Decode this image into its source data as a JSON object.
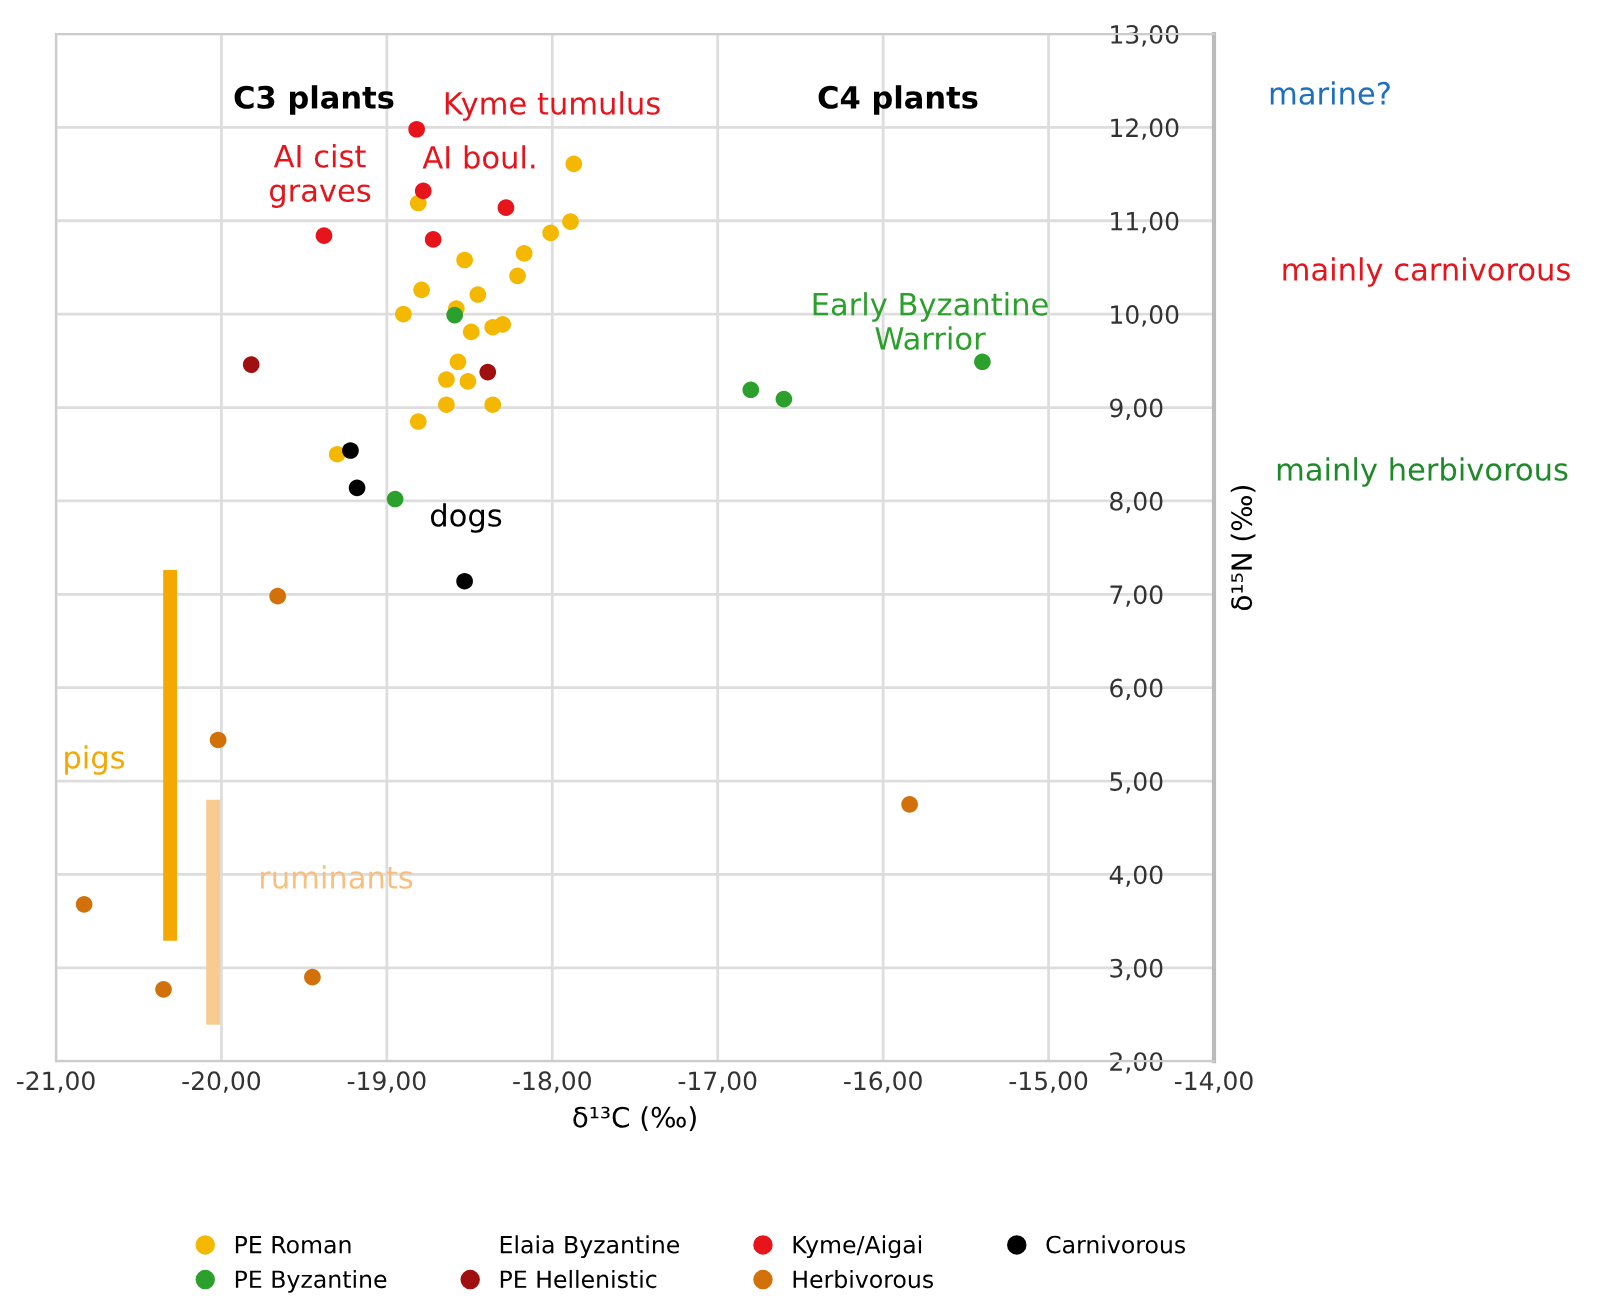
{
  "chart_data": {
    "type": "scatter",
    "xlabel": "δ¹³C (‰)",
    "ylabel": "δ¹⁵N (‰)",
    "xlim": [
      -21,
      -14
    ],
    "xticks": [
      {
        "value": -21,
        "label": "-21,00"
      },
      {
        "value": -20,
        "label": "-20,00"
      },
      {
        "value": -19,
        "label": "-19,00"
      },
      {
        "value": -18,
        "label": "-18,00"
      },
      {
        "value": -17,
        "label": "-17,00"
      },
      {
        "value": -16,
        "label": "-16,00"
      },
      {
        "value": -15,
        "label": "-15,00"
      },
      {
        "value": -14,
        "label": "-14,00"
      }
    ],
    "ylim": [
      2,
      13
    ],
    "yticks": [
      {
        "value": 2,
        "label": "2,00"
      },
      {
        "value": 3,
        "label": "3,00"
      },
      {
        "value": 4,
        "label": "4,00"
      },
      {
        "value": 5,
        "label": "5,00"
      },
      {
        "value": 6,
        "label": "6,00"
      },
      {
        "value": 7,
        "label": "7,00"
      },
      {
        "value": 8,
        "label": "8,00"
      },
      {
        "value": 9,
        "label": "9,00"
      },
      {
        "value": 10,
        "label": "10,00"
      },
      {
        "value": 11,
        "label": "11,00"
      },
      {
        "value": 12,
        "label": "12,00"
      },
      {
        "value": 13,
        "label": "13,00"
      }
    ],
    "grid": true,
    "legend": "bottom",
    "marker": "circle",
    "series": [
      {
        "name": "PE Roman",
        "color": "#f5b800",
        "x": [
          -17.87,
          -18.81,
          -17.89,
          -18.01,
          -18.17,
          -18.53,
          -18.21,
          -18.79,
          -18.45,
          -18.58,
          -18.9,
          -18.49,
          -18.36,
          -18.3,
          -18.57,
          -18.64,
          -18.51,
          -18.64,
          -18.36,
          -18.81,
          -19.3
        ],
        "values": [
          11.61,
          11.19,
          10.99,
          10.87,
          10.65,
          10.58,
          10.41,
          10.26,
          10.21,
          10.06,
          10.0,
          9.81,
          9.86,
          9.89,
          9.49,
          9.3,
          9.28,
          9.03,
          9.03,
          8.85,
          8.5
        ]
      },
      {
        "name": "PE Byzantine",
        "color": "#2ca02c",
        "x": [
          -18.59,
          -18.95,
          -16.8,
          -16.6,
          -15.4
        ],
        "values": [
          9.99,
          8.02,
          9.19,
          9.09,
          9.49
        ]
      },
      {
        "name": "Elaia Byzantine",
        "color": null
      },
      {
        "name": "PE Hellenistic",
        "color": "#a01010",
        "x": [
          -19.82,
          -18.39
        ],
        "values": [
          9.46,
          9.38
        ]
      },
      {
        "name": "Kyme/Aigai",
        "color": "#e8141c",
        "x": [
          -18.82,
          -18.78,
          -18.28,
          -19.38,
          -18.72
        ],
        "values": [
          11.98,
          11.32,
          11.14,
          10.84,
          10.8
        ]
      },
      {
        "name": "Herbivorous",
        "color": "#d2700a",
        "x": [
          -19.66,
          -20.02,
          -20.83,
          -20.35,
          -19.45,
          -15.84
        ],
        "values": [
          6.98,
          5.44,
          3.68,
          2.77,
          2.9,
          4.75
        ]
      },
      {
        "name": "Carnivorous",
        "color": "#000000",
        "x": [
          -19.22,
          -19.18,
          -18.53
        ],
        "values": [
          8.54,
          8.14,
          7.14
        ]
      },
      {
        "type": "line",
        "marker": "none",
        "color": "#f5a800",
        "x": [
          -20.31,
          -20.31
        ],
        "values": [
          7.26,
          3.29
        ]
      },
      {
        "type": "line",
        "marker": "none",
        "color": "#f8cc90",
        "x": [
          -20.05,
          -20.05
        ],
        "values": [
          4.8,
          2.39
        ]
      }
    ],
    "annotations": [
      "C3 plants",
      "C4 plants",
      "Kyme tumulus",
      "AI cist\ngraves",
      "AI boul.",
      "Early Byzantine\nWarrior",
      "dogs",
      "pigs",
      "ruminants",
      "marine?",
      "mainly carnivorous",
      "mainly herbivorous"
    ]
  }
}
